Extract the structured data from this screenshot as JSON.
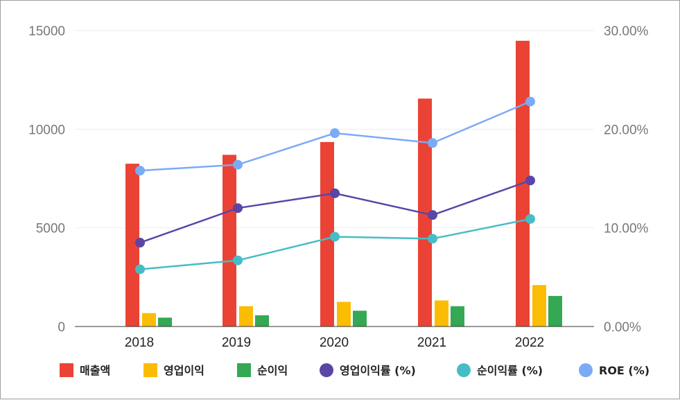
{
  "chart_data": {
    "type": "bar",
    "categories": [
      "2018",
      "2019",
      "2020",
      "2021",
      "2022"
    ],
    "y_left": {
      "min": 0,
      "max": 15000,
      "ticks": [
        "0",
        "5000",
        "10000",
        "15000"
      ]
    },
    "y_right": {
      "min": 0,
      "max": 30,
      "ticks": [
        "0.00%",
        "10.00%",
        "20.00%",
        "30.00%"
      ]
    },
    "grid": true,
    "legend_position": "bottom",
    "bar_series": [
      {
        "name": "매출액",
        "color": "#ea4335",
        "values": [
          8250,
          8700,
          9350,
          11550,
          14480
        ]
      },
      {
        "name": "영업이익",
        "color": "#fbbc04",
        "values": [
          680,
          1030,
          1250,
          1320,
          2100
        ]
      },
      {
        "name": "순이익",
        "color": "#34a853",
        "values": [
          450,
          570,
          800,
          1030,
          1550
        ]
      }
    ],
    "line_series": [
      {
        "name": "영업이익률 (%)",
        "color": "#5b45a6",
        "values": [
          8.5,
          12.0,
          13.5,
          11.3,
          14.8
        ]
      },
      {
        "name": "순이익률 (%)",
        "color": "#46bdc6",
        "values": [
          5.8,
          6.7,
          9.1,
          8.9,
          10.9
        ]
      },
      {
        "name": "ROE (%)",
        "color": "#7baaf7",
        "values": [
          15.8,
          16.4,
          19.6,
          18.6,
          22.8
        ]
      }
    ]
  }
}
